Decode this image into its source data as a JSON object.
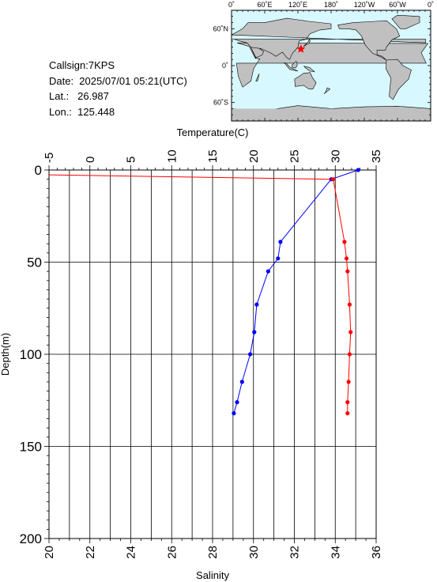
{
  "info": {
    "callsign": "Callsign:7KPS",
    "date": "Date:  2025/07/01 05:21(UTC)",
    "lat": "Lat.:   26.987",
    "lon": "Lon.:  125.448"
  },
  "map": {
    "lon_labels": [
      "0˚",
      "60˚E",
      "120˚E",
      "180˚",
      "120˚W",
      "60˚W",
      "0˚"
    ],
    "lat_labels": [
      "60˚N",
      "0˚",
      "60˚S"
    ],
    "marker": {
      "lon": 125.448,
      "lat": 26.987
    },
    "colors": {
      "ocean": "#d8f8ff",
      "land": "#c0c0c0",
      "marker": "#ff0000"
    }
  },
  "chart_data": {
    "type": "line",
    "ylabel": "Depth(m)",
    "ylim": [
      200,
      0
    ],
    "yticks": [
      0,
      50,
      100,
      150,
      200
    ],
    "x_top": {
      "label": "Temperature(C)",
      "lim": [
        -5,
        35
      ],
      "ticks": [
        -5,
        0,
        5,
        10,
        15,
        20,
        25,
        30,
        35
      ]
    },
    "x_bottom": {
      "label": "Salinity",
      "lim": [
        20,
        36
      ],
      "ticks": [
        20,
        22,
        24,
        26,
        28,
        30,
        32,
        34,
        36
      ]
    },
    "series": [
      {
        "axis": "temperature",
        "color": "#0000ff",
        "points": [
          [
            32.8,
            0
          ],
          [
            29.5,
            5
          ],
          [
            23.3,
            39
          ],
          [
            23.0,
            48
          ],
          [
            21.8,
            55
          ],
          [
            20.4,
            73
          ],
          [
            20.1,
            88
          ],
          [
            19.6,
            100
          ],
          [
            18.6,
            115
          ],
          [
            18.0,
            126
          ],
          [
            17.6,
            132
          ]
        ]
      },
      {
        "axis": "salinity",
        "color": "#ff0000",
        "line_points": [
          [
            20,
            2.6
          ],
          [
            33.9,
            5
          ]
        ],
        "points": [
          [
            33.9,
            5
          ],
          [
            34.45,
            39
          ],
          [
            34.55,
            48
          ],
          [
            34.6,
            55
          ],
          [
            34.7,
            73
          ],
          [
            34.75,
            88
          ],
          [
            34.7,
            100
          ],
          [
            34.65,
            115
          ],
          [
            34.6,
            126
          ],
          [
            34.6,
            132
          ]
        ]
      }
    ]
  }
}
